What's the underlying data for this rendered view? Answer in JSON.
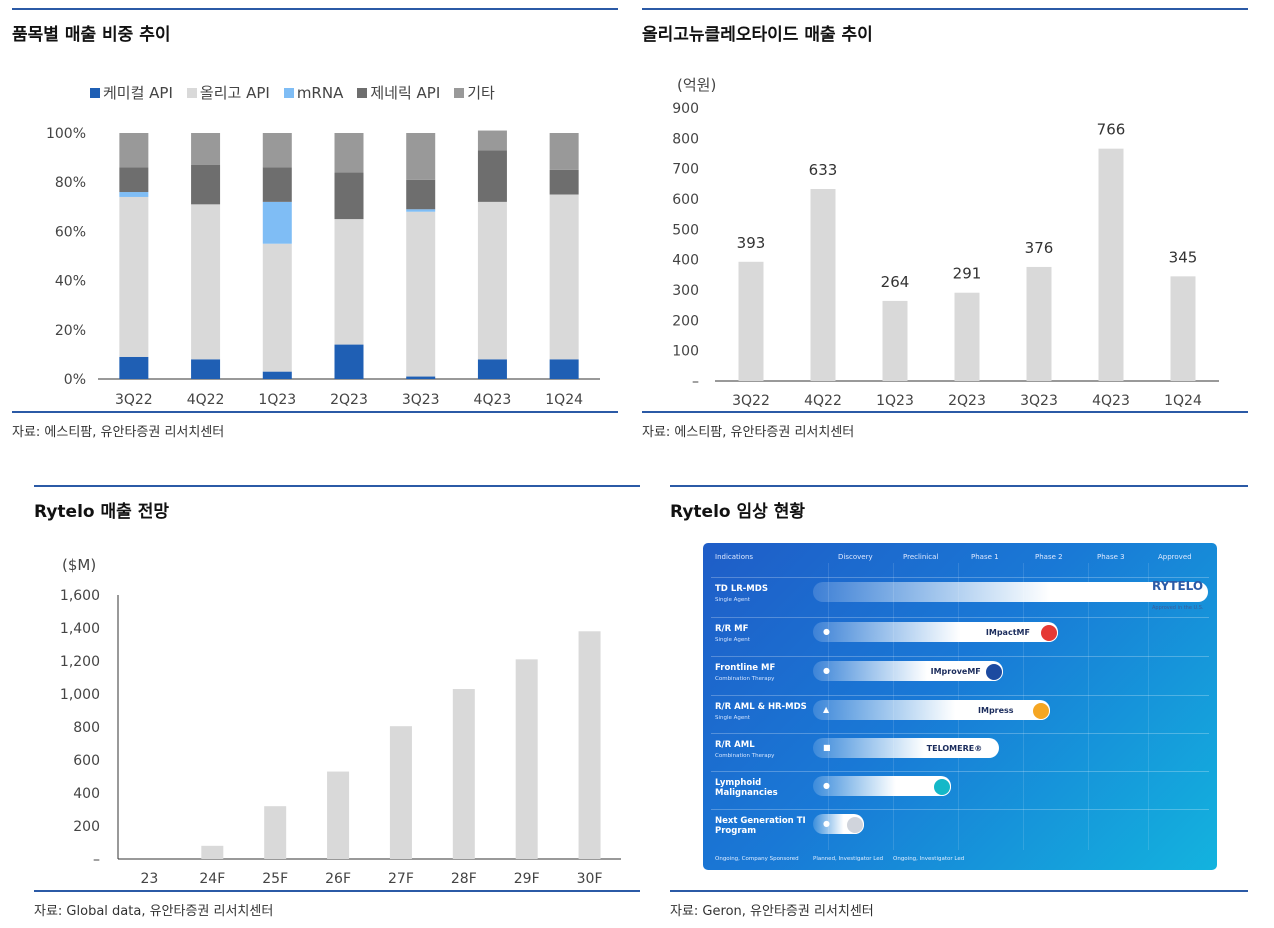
{
  "panels": {
    "p1": {
      "title": "품목별 매출 비중 추이",
      "source": "자료: 에스티팜, 유안타증권 리서치센터"
    },
    "p2": {
      "title": "올리고뉴클레오타이드 매출 추이",
      "source": "자료: 에스티팜, 유안타증권 리서치센터"
    },
    "p3": {
      "title": "Rytelo 매출 전망",
      "source": "자료: Global data, 유안타증권 리서치센터"
    },
    "p4": {
      "title": "Rytelo 임상 현황",
      "source": "자료: Geron, 유안타증권 리서치센터"
    }
  },
  "chart_data": [
    {
      "type": "bar",
      "stacked": true,
      "categories": [
        "3Q22",
        "4Q22",
        "1Q23",
        "2Q23",
        "3Q23",
        "4Q23",
        "1Q24"
      ],
      "yticks": [
        "0%",
        "20%",
        "40%",
        "60%",
        "80%",
        "100%"
      ],
      "ylim": [
        0,
        100
      ],
      "legend_position": "top",
      "series": [
        {
          "name": "케미컬 API",
          "color": "#1f5fb4",
          "values": [
            9,
            8,
            3,
            14,
            1,
            8,
            8
          ]
        },
        {
          "name": "올리고 API",
          "color": "#d9d9d9",
          "values": [
            65,
            63,
            52,
            51,
            67,
            64,
            67
          ]
        },
        {
          "name": "mRNA",
          "color": "#7fbdf5",
          "values": [
            2,
            0,
            17,
            0,
            1,
            0,
            0
          ]
        },
        {
          "name": "제네릭 API",
          "color": "#6e6e6e",
          "values": [
            10,
            16,
            14,
            19,
            12,
            21,
            10
          ]
        },
        {
          "name": "기타",
          "color": "#999999",
          "values": [
            14,
            13,
            14,
            16,
            19,
            8,
            15
          ]
        }
      ]
    },
    {
      "type": "bar",
      "categories": [
        "3Q22",
        "4Q22",
        "1Q23",
        "2Q23",
        "3Q23",
        "4Q23",
        "1Q24"
      ],
      "values": [
        393,
        633,
        264,
        291,
        376,
        766,
        345
      ],
      "labels": [
        "393",
        "633",
        "264",
        "291",
        "376",
        "766",
        "345"
      ],
      "unit": "(억원)",
      "yticks": [
        "–",
        "100",
        "200",
        "300",
        "400",
        "500",
        "600",
        "700",
        "800",
        "900"
      ],
      "ylim": [
        0,
        900
      ],
      "bar_color": "#d9d9d9"
    },
    {
      "type": "bar",
      "categories": [
        "23",
        "24F",
        "25F",
        "26F",
        "27F",
        "28F",
        "29F",
        "30F"
      ],
      "values": [
        0,
        80,
        320,
        530,
        805,
        1030,
        1210,
        1380
      ],
      "unit": "($M)",
      "yticks": [
        "–",
        "200",
        "400",
        "600",
        "800",
        "1,000",
        "1,200",
        "1,400",
        "1,600"
      ],
      "ylim": [
        0,
        1600
      ],
      "bar_color": "#d9d9d9"
    }
  ],
  "trial_figure": {
    "headers": [
      "Indications",
      "Discovery",
      "Preclinical",
      "Phase 1",
      "Phase 2",
      "Phase 3",
      "Approved"
    ],
    "rows": [
      {
        "label": "TD LR-MDS",
        "sub": "Single Agent",
        "study": "",
        "progress": 1.0,
        "dot_color": "",
        "marker": ""
      },
      {
        "label": "R/R MF",
        "sub": "Single Agent",
        "study": "IMpactMF",
        "progress": 0.62,
        "dot_color": "#e53935",
        "marker": "●"
      },
      {
        "label": "Frontline MF",
        "sub": "Combination Therapy",
        "study": "IMproveMF",
        "progress": 0.48,
        "dot_color": "#1c4aa0",
        "marker": "●"
      },
      {
        "label": "R/R AML & HR-MDS",
        "sub": "Single Agent",
        "study": "IMpress",
        "progress": 0.6,
        "dot_color": "#f5a623",
        "marker": "▲"
      },
      {
        "label": "R/R AML",
        "sub": "Combination Therapy",
        "study": "TELOMERE®",
        "progress": 0.47,
        "dot_color": "",
        "marker": "■"
      },
      {
        "label": "Lymphoid Malignancies",
        "sub": "",
        "study": "",
        "progress": 0.35,
        "dot_color": "#14b8c8",
        "marker": "●"
      },
      {
        "label": "Next Generation TI Program",
        "sub": "",
        "study": "",
        "progress": 0.13,
        "dot_color": "#d0d4dc",
        "marker": "●"
      }
    ],
    "brand": "RYTELO",
    "brand_sub": "Approved in the U.S.",
    "footer": [
      "Ongoing, Company Sponsored",
      "Planned, Investigator Led",
      "Ongoing, Investigator Led"
    ]
  }
}
